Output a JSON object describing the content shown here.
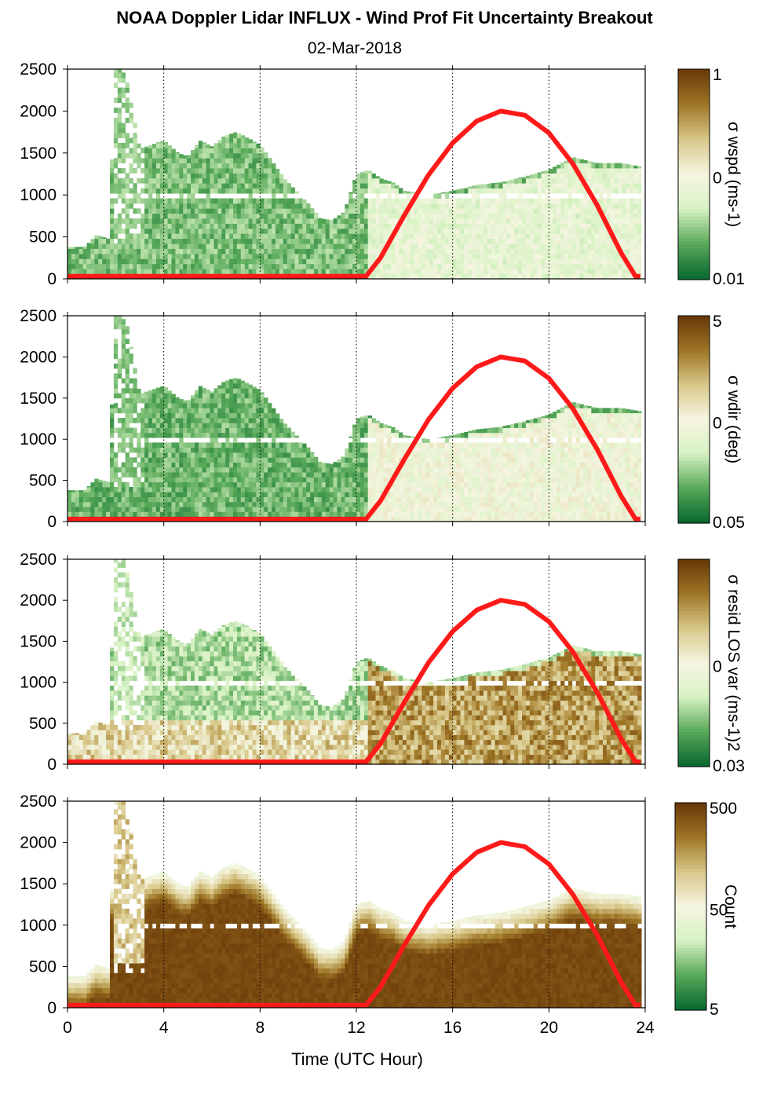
{
  "title": "NOAA Doppler Lidar INFLUX - Wind Prof Fit Uncertainty Breakout",
  "subtitle": "02-Mar-2018",
  "colors": {
    "line": "#ff1a1a",
    "axis": "#000000",
    "grid": "#000000",
    "green_dark": "#0b6a32",
    "green_light": "#d8f2c4",
    "brown_light": "#d8c88a",
    "brown_dark": "#6a3a08"
  },
  "chart_data": [
    {
      "type": "heatmap",
      "id": "wspd",
      "xlabel": "",
      "ylabel": "",
      "xlim": [
        0,
        24
      ],
      "ylim": [
        0,
        2500
      ],
      "xticks": [
        "0",
        "4",
        "8",
        "12",
        "16",
        "20",
        "24"
      ],
      "yticks": [
        "0",
        "500",
        "1000",
        "1500",
        "2000",
        "2500"
      ],
      "colorbar": {
        "label": "σ wspd (ms-1)",
        "label_sup": "-1",
        "ticks": [
          "1",
          "0",
          "0.01"
        ],
        "log": true
      },
      "mix_start_hour": 12.4,
      "night_level": 0.12,
      "day_level": 0.32,
      "line": {
        "x": [
          0,
          12.4,
          13,
          14,
          15,
          16,
          17,
          18,
          19,
          20,
          21,
          22,
          23,
          23.6,
          23.8
        ],
        "y": [
          30,
          30,
          250,
          760,
          1240,
          1620,
          1880,
          2000,
          1950,
          1740,
          1370,
          880,
          310,
          30,
          30
        ]
      }
    },
    {
      "type": "heatmap",
      "id": "wdir",
      "xlabel": "",
      "ylabel": "",
      "xlim": [
        0,
        24
      ],
      "ylim": [
        0,
        2500
      ],
      "xticks": [
        "0",
        "4",
        "8",
        "12",
        "16",
        "20",
        "24"
      ],
      "yticks": [
        "0",
        "500",
        "1000",
        "1500",
        "2000",
        "2500"
      ],
      "colorbar": {
        "label": "σ wdir (deg)",
        "label_sup": "",
        "ticks": [
          "5",
          "0",
          "0.05"
        ],
        "log": true
      },
      "mix_start_hour": 12.4,
      "night_level": 0.1,
      "day_level": 0.38,
      "line": {
        "x": [
          0,
          12.4,
          13,
          14,
          15,
          16,
          17,
          18,
          19,
          20,
          21,
          22,
          23,
          23.6,
          23.8
        ],
        "y": [
          30,
          30,
          250,
          760,
          1240,
          1620,
          1880,
          2000,
          1950,
          1740,
          1370,
          880,
          310,
          30,
          30
        ]
      }
    },
    {
      "type": "heatmap",
      "id": "resid",
      "xlabel": "",
      "ylabel": "",
      "xlim": [
        0,
        24
      ],
      "ylim": [
        0,
        2500
      ],
      "xticks": [
        "0",
        "4",
        "8",
        "12",
        "16",
        "20",
        "24"
      ],
      "yticks": [
        "0",
        "500",
        "1000",
        "1500",
        "2000",
        "2500"
      ],
      "colorbar": {
        "label": "σ resid LOS var (ms-1)2",
        "label_sup": "-1",
        "ticks": [
          "",
          "0",
          "0.03"
        ],
        "log": true
      },
      "mix_start_hour": 12.4,
      "night_level": 0.18,
      "day_level": 0.72,
      "line": {
        "x": [
          0,
          12.4,
          13,
          14,
          15,
          16,
          17,
          18,
          19,
          20,
          21,
          22,
          23,
          23.6,
          23.8
        ],
        "y": [
          30,
          30,
          250,
          760,
          1240,
          1620,
          1880,
          2000,
          1950,
          1740,
          1370,
          880,
          310,
          30,
          30
        ]
      }
    },
    {
      "type": "heatmap",
      "id": "count",
      "xlabel": "Time (UTC Hour)",
      "ylabel": "",
      "xlim": [
        0,
        24
      ],
      "ylim": [
        0,
        2500
      ],
      "xticks": [
        "0",
        "4",
        "8",
        "12",
        "16",
        "20",
        "24"
      ],
      "yticks": [
        "0",
        "500",
        "1000",
        "1500",
        "2000",
        "2500"
      ],
      "colorbar": {
        "label": "Count",
        "label_sup": "",
        "ticks": [
          "500",
          "50",
          "5"
        ],
        "log": true
      },
      "mix_start_hour": 12.4,
      "night_level": 0.95,
      "day_level": 0.95,
      "line": {
        "x": [
          0,
          12.4,
          13,
          14,
          15,
          16,
          17,
          18,
          19,
          20,
          21,
          22,
          23,
          23.6,
          23.8
        ],
        "y": [
          30,
          30,
          250,
          760,
          1240,
          1620,
          1880,
          2000,
          1950,
          1740,
          1370,
          880,
          310,
          30,
          30
        ]
      }
    }
  ],
  "data_top_profile": {
    "x": [
      0,
      0.7,
      1.2,
      1.7,
      2.0,
      2.4,
      3.0,
      3.5,
      4.0,
      4.6,
      5.0,
      5.5,
      6.0,
      6.5,
      7.0,
      7.5,
      8.0,
      8.5,
      9.0,
      9.5,
      10.0,
      10.5,
      11.0,
      11.5,
      12.0,
      12.5,
      13.0,
      13.5,
      14.0,
      15.0,
      16.0,
      17.0,
      18.0,
      19.0,
      20.0,
      21.0,
      22.0,
      23.0,
      23.8
    ],
    "y": [
      380,
      380,
      520,
      480,
      2500,
      2500,
      1550,
      1600,
      1650,
      1500,
      1460,
      1650,
      1580,
      1700,
      1750,
      1680,
      1600,
      1400,
      1200,
      1050,
      900,
      720,
      700,
      800,
      1250,
      1300,
      1200,
      1150,
      1050,
      1000,
      1050,
      1120,
      1150,
      1220,
      1300,
      1450,
      1380,
      1380,
      1340
    ]
  }
}
